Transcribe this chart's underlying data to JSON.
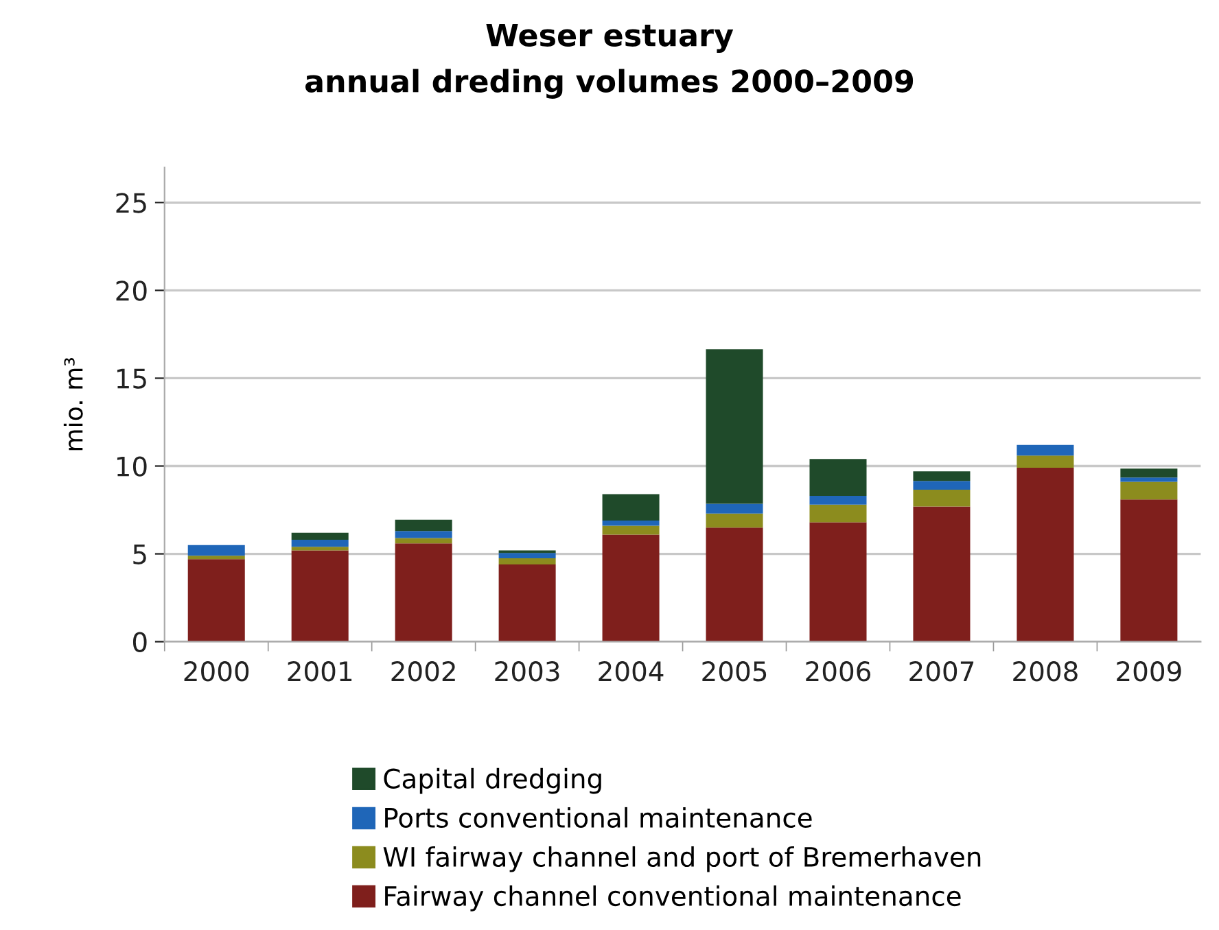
{
  "chart_data": {
    "type": "bar",
    "stacked": true,
    "title": "Weser estuary\nannual dreding volumes 2000–2009",
    "ylabel": "mio. m³",
    "categories": [
      "2000",
      "2001",
      "2002",
      "2003",
      "2004",
      "2005",
      "2006",
      "2007",
      "2008",
      "2009"
    ],
    "series": [
      {
        "name": "Fairway channel conventional maintenance",
        "color": "#7f1f1c",
        "values": [
          4.7,
          5.2,
          5.6,
          4.4,
          6.1,
          6.5,
          6.8,
          7.7,
          9.9,
          8.1
        ]
      },
      {
        "name": "WI fairway channel and port of Bremerhaven",
        "color": "#8c8c1e",
        "values": [
          0.2,
          0.2,
          0.3,
          0.35,
          0.5,
          0.8,
          1.0,
          0.95,
          0.7,
          1.0
        ]
      },
      {
        "name": "Ports conventional maintenance",
        "color": "#1f66b8",
        "values": [
          0.6,
          0.4,
          0.4,
          0.3,
          0.3,
          0.55,
          0.5,
          0.5,
          0.6,
          0.25
        ]
      },
      {
        "name": "Capital dredging",
        "color": "#1f4a2a",
        "values": [
          0,
          0.4,
          0.65,
          0.15,
          1.5,
          8.8,
          2.1,
          0.55,
          0,
          0.5
        ]
      }
    ],
    "ylim": [
      0,
      27
    ],
    "yticks": [
      0,
      5,
      10,
      15,
      20,
      25
    ],
    "grid": "y",
    "legend": "bottom"
  }
}
